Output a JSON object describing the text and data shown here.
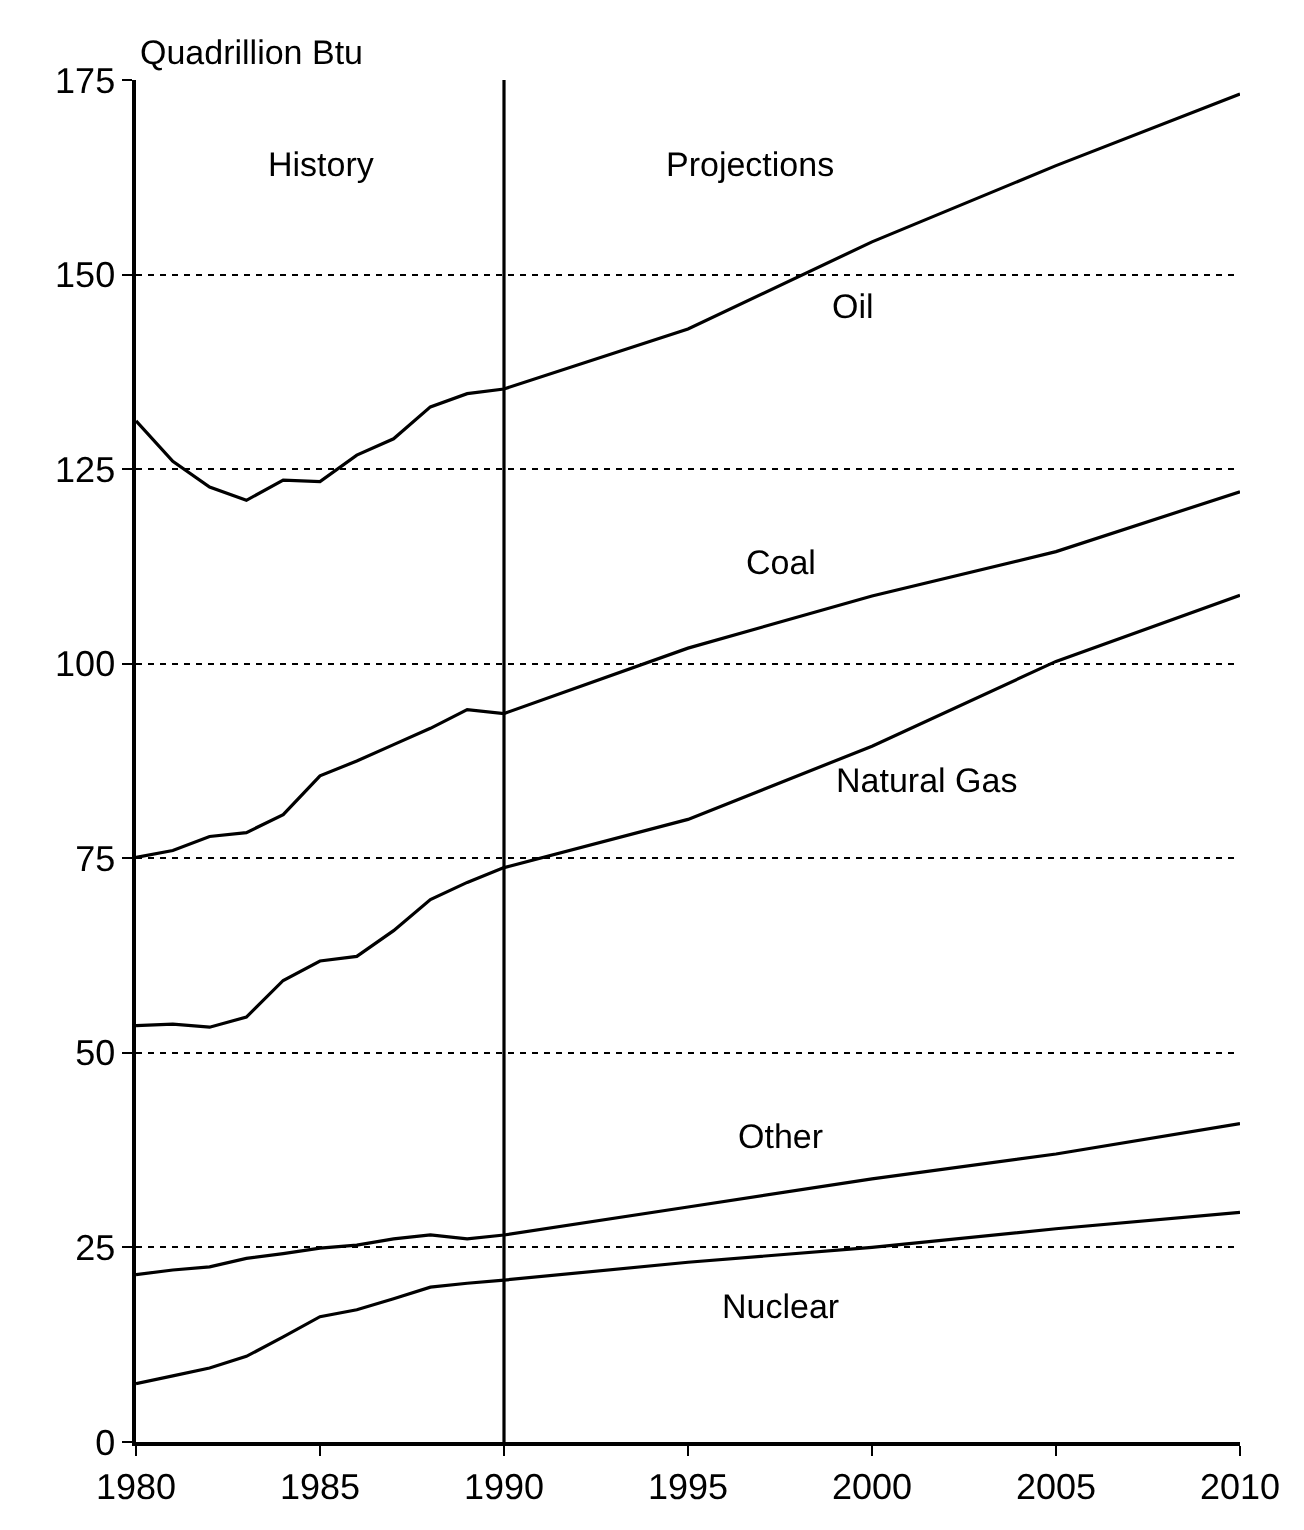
{
  "chart_data": {
    "type": "line",
    "ylabel": "Quadrillion Btu",
    "x": [
      1980,
      1981,
      1982,
      1983,
      1984,
      1985,
      1986,
      1987,
      1988,
      1989,
      1990,
      1995,
      2000,
      2005,
      2010
    ],
    "series": [
      {
        "name": "Oil",
        "color": "#000000",
        "values": [
          131.2,
          126,
          122.7,
          121,
          123.6,
          123.4,
          126.8,
          128.9,
          133,
          134.7,
          135.3,
          143,
          154.2,
          164,
          173.2
        ]
      },
      {
        "name": "Coal",
        "color": "#000000",
        "values": [
          75.1,
          76,
          77.8,
          78.3,
          80.6,
          85.6,
          87.5,
          89.6,
          91.7,
          94.1,
          93.6,
          102,
          108.7,
          114.4,
          122.1
        ]
      },
      {
        "name": "Natural Gas",
        "color": "#000000",
        "values": [
          53.5,
          53.7,
          53.3,
          54.6,
          59.3,
          61.8,
          62.4,
          65.7,
          69.7,
          71.9,
          73.8,
          80,
          89.4,
          100.3,
          108.8
        ]
      },
      {
        "name": "Other",
        "color": "#000000",
        "values": [
          21.5,
          22.1,
          22.5,
          23.6,
          24.2,
          24.9,
          25.3,
          26.1,
          26.6,
          26.1,
          26.6,
          30.2,
          33.8,
          37,
          40.9
        ]
      },
      {
        "name": "Nuclear",
        "color": "#000000",
        "values": [
          7.5,
          8.5,
          9.5,
          11,
          13.5,
          16.1,
          17,
          18.4,
          19.9,
          20.4,
          20.8,
          23.1,
          25,
          27.4,
          29.5
        ]
      }
    ],
    "annotations": [
      "History",
      "Projections"
    ],
    "ref_lines": [
      {
        "axis": "x",
        "value": 1990,
        "color": "#000000",
        "line_style": "solid"
      }
    ],
    "xlim": [
      1980,
      2010
    ],
    "xticks": [
      1980,
      1985,
      1990,
      1995,
      2000,
      2005,
      2010
    ],
    "ylim": [
      0,
      175
    ],
    "yticks": [
      0,
      25,
      50,
      75,
      100,
      125,
      150,
      175
    ],
    "grid": "y",
    "legend": false,
    "marker": "none",
    "line_style": "solid"
  }
}
